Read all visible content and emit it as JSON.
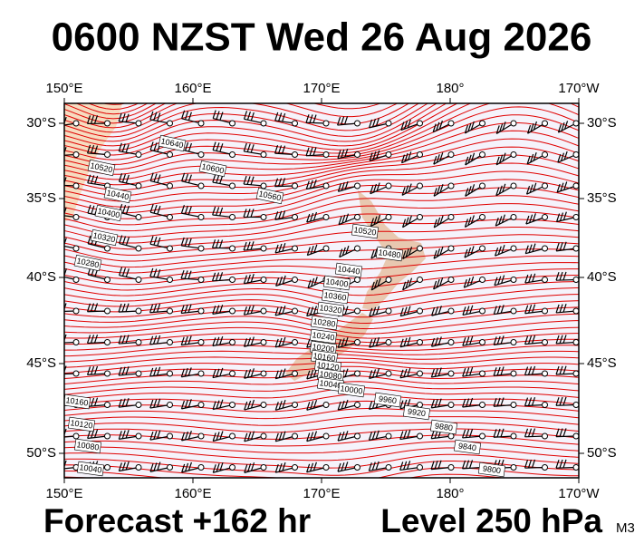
{
  "title": "0600 NZST Wed 26 Aug 2026",
  "footer": {
    "forecast": "Forecast +162 hr",
    "level": "Level 250 hPa",
    "model": "M3"
  },
  "map": {
    "top_labels": [
      "150°E",
      "160°E",
      "170°E",
      "180°",
      "170°W"
    ],
    "bottom_labels": [
      "150°E",
      "160°E",
      "170°E",
      "180°",
      "170°W"
    ],
    "left_labels": [
      "30°S",
      "35°S",
      "40°S",
      "45°S",
      "50°S"
    ],
    "right_labels": [
      "30°S",
      "35°S",
      "40°S",
      "45°S",
      "50°S"
    ],
    "contour_labels": [
      "10640",
      "10600",
      "10560",
      "10520",
      "10440",
      "10400",
      "10320",
      "10280",
      "10520",
      "10480",
      "10440",
      "10400",
      "10360",
      "10320",
      "10280",
      "10240",
      "10200",
      "10160",
      "10120",
      "10080",
      "10040",
      "10000",
      "9960",
      "9920",
      "9880",
      "9840",
      "9800",
      "10160",
      "10120",
      "10080",
      "10040"
    ]
  }
}
